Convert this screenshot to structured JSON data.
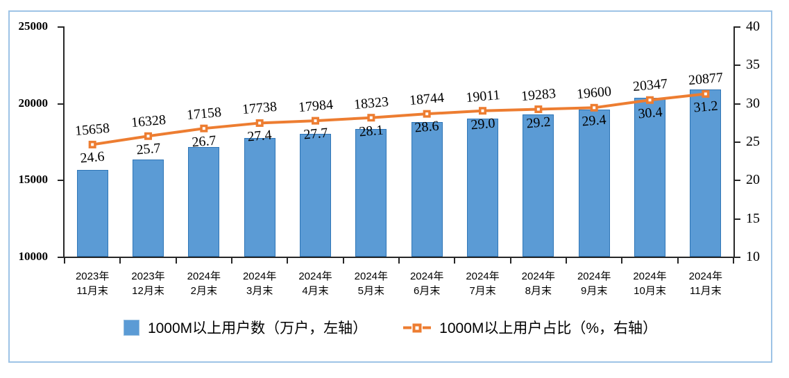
{
  "chart_data": {
    "type": "bar",
    "combo": "bar+line dual-axis",
    "title": "",
    "categories": [
      "2023年\n11月末",
      "2023年\n12月末",
      "2024年\n2月末",
      "2024年\n3月末",
      "2024年\n4月末",
      "2024年\n5月末",
      "2024年\n6月末",
      "2024年\n7月末",
      "2024年\n8月末",
      "2024年\n9月末",
      "2024年\n10月末",
      "2024年\n11月末"
    ],
    "series": [
      {
        "name": "1000M以上用户数（万户，左轴）",
        "type": "bar",
        "axis": "left",
        "values": [
          15658,
          16328,
          17158,
          17738,
          17984,
          18323,
          18744,
          19011,
          19283,
          19600,
          20347,
          20877
        ],
        "labels": [
          "15658",
          "16328",
          "17158",
          "17738",
          "17984",
          "18323",
          "18744",
          "19011",
          "19283",
          "19600",
          "20347",
          "20877"
        ],
        "fill_color": "#5B9BD5",
        "border_color": "#2E75B6"
      },
      {
        "name": "1000M以上用户占比（%，右轴）",
        "type": "line",
        "axis": "right",
        "values": [
          24.6,
          25.7,
          26.7,
          27.4,
          27.7,
          28.1,
          28.6,
          29.0,
          29.2,
          29.4,
          30.4,
          31.2
        ],
        "labels": [
          "24.6",
          "25.7",
          "26.7",
          "27.4",
          "27.7",
          "28.1",
          "28.6",
          "29.0",
          "29.2",
          "29.4",
          "30.4",
          "31.2"
        ],
        "color": "#ED7D31",
        "marker": "square-with-white-center"
      }
    ],
    "left_axis": {
      "min": 10000,
      "max": 25000,
      "ticks": [
        10000,
        15000,
        20000,
        25000
      ]
    },
    "right_axis": {
      "min": 10,
      "max": 40,
      "ticks": [
        10,
        15,
        20,
        25,
        30,
        35,
        40
      ]
    },
    "legend_position": "bottom",
    "grid": false,
    "frame_color": "#9DC3E6",
    "axis_color": "#262626"
  }
}
